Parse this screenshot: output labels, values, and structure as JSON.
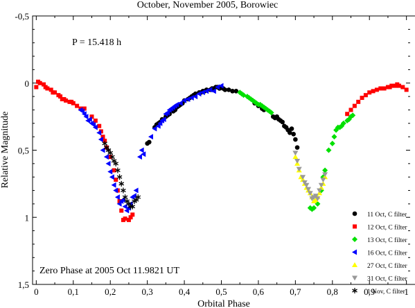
{
  "chart_data": {
    "type": "scatter",
    "title": "October, November  2005, Borowiec",
    "xlabel": "Orbital Phase",
    "ylabel": "Relative Magnitude",
    "xlim": [
      -0.01,
      1.01
    ],
    "ylim": [
      -0.5,
      1.5
    ],
    "y_inverted": true,
    "x_ticks": [
      "0",
      "0,1",
      "0,2",
      "0,3",
      "0,4",
      "0,5",
      "0,6",
      "0,7",
      "0,8",
      "0,9",
      "1"
    ],
    "y_ticks": [
      "-0,5",
      "0",
      "0,5",
      "1",
      "1,5"
    ],
    "annotations": [
      "P = 15.418 h",
      "Zero Phase at 2005 Oct 11.9821 UT"
    ],
    "legend_position": "bottom-right",
    "series": [
      {
        "name": "11 Oct, C filter",
        "marker": "circle",
        "color": "#000000",
        "points": [
          [
            0.3,
            0.45
          ],
          [
            0.305,
            0.44
          ],
          [
            0.32,
            0.33
          ],
          [
            0.325,
            0.31
          ],
          [
            0.33,
            0.3
          ],
          [
            0.335,
            0.29
          ],
          [
            0.34,
            0.27
          ],
          [
            0.35,
            0.25
          ],
          [
            0.355,
            0.24
          ],
          [
            0.36,
            0.23
          ],
          [
            0.37,
            0.21
          ],
          [
            0.375,
            0.2
          ],
          [
            0.38,
            0.18
          ],
          [
            0.385,
            0.17
          ],
          [
            0.39,
            0.16
          ],
          [
            0.395,
            0.15
          ],
          [
            0.4,
            0.13
          ],
          [
            0.41,
            0.12
          ],
          [
            0.415,
            0.11
          ],
          [
            0.42,
            0.1
          ],
          [
            0.425,
            0.09
          ],
          [
            0.43,
            0.08
          ],
          [
            0.44,
            0.07
          ],
          [
            0.445,
            0.07
          ],
          [
            0.45,
            0.06
          ],
          [
            0.455,
            0.06
          ],
          [
            0.46,
            0.05
          ],
          [
            0.47,
            0.05
          ],
          [
            0.475,
            0.04
          ],
          [
            0.48,
            0.04
          ],
          [
            0.485,
            0.03
          ],
          [
            0.49,
            0.03
          ],
          [
            0.495,
            0.04
          ],
          [
            0.5,
            0.03
          ],
          [
            0.505,
            0.04
          ],
          [
            0.51,
            0.05
          ],
          [
            0.52,
            0.05
          ],
          [
            0.53,
            0.06
          ],
          [
            0.54,
            0.06
          ],
          [
            0.59,
            0.15
          ],
          [
            0.6,
            0.17
          ],
          [
            0.61,
            0.19
          ],
          [
            0.615,
            0.2
          ],
          [
            0.64,
            0.25
          ],
          [
            0.645,
            0.26
          ],
          [
            0.65,
            0.25
          ],
          [
            0.655,
            0.27
          ],
          [
            0.66,
            0.28
          ],
          [
            0.665,
            0.29
          ],
          [
            0.67,
            0.32
          ],
          [
            0.675,
            0.33
          ],
          [
            0.68,
            0.35
          ],
          [
            0.685,
            0.37
          ],
          [
            0.69,
            0.34
          ],
          [
            0.695,
            0.38
          ],
          [
            0.7,
            0.42
          ],
          [
            0.705,
            0.48
          ]
        ]
      },
      {
        "name": "12 Oct, C filter",
        "marker": "square",
        "color": "#ff0000",
        "points": [
          [
            0.0,
            0.03
          ],
          [
            0.005,
            -0.01
          ],
          [
            0.01,
            0.0
          ],
          [
            0.02,
            0.01
          ],
          [
            0.025,
            0.03
          ],
          [
            0.03,
            0.04
          ],
          [
            0.04,
            0.05
          ],
          [
            0.045,
            0.07
          ],
          [
            0.05,
            0.07
          ],
          [
            0.06,
            0.09
          ],
          [
            0.065,
            0.1
          ],
          [
            0.07,
            0.12
          ],
          [
            0.075,
            0.12
          ],
          [
            0.08,
            0.13
          ],
          [
            0.09,
            0.14
          ],
          [
            0.095,
            0.14
          ],
          [
            0.1,
            0.15
          ],
          [
            0.11,
            0.17
          ],
          [
            0.12,
            0.19
          ],
          [
            0.13,
            0.19
          ],
          [
            0.15,
            0.25
          ],
          [
            0.16,
            0.28
          ],
          [
            0.17,
            0.32
          ],
          [
            0.175,
            0.36
          ],
          [
            0.18,
            0.4
          ],
          [
            0.185,
            0.43
          ],
          [
            0.19,
            0.48
          ],
          [
            0.2,
            0.55
          ],
          [
            0.21,
            0.65
          ],
          [
            0.215,
            0.72
          ],
          [
            0.22,
            0.8
          ],
          [
            0.225,
            0.88
          ],
          [
            0.23,
            0.95
          ],
          [
            0.235,
            1.02
          ],
          [
            0.24,
            1.01
          ],
          [
            0.25,
            1.02
          ],
          [
            0.255,
            1.0
          ],
          [
            0.26,
            0.98
          ],
          [
            0.84,
            0.23
          ],
          [
            0.85,
            0.2
          ],
          [
            0.86,
            0.17
          ],
          [
            0.87,
            0.14
          ],
          [
            0.88,
            0.11
          ],
          [
            0.89,
            0.09
          ],
          [
            0.9,
            0.07
          ],
          [
            0.91,
            0.06
          ],
          [
            0.92,
            0.05
          ],
          [
            0.93,
            0.04
          ],
          [
            0.94,
            0.04
          ],
          [
            0.95,
            0.03
          ],
          [
            0.955,
            0.03
          ],
          [
            0.96,
            0.02
          ],
          [
            0.97,
            0.02
          ],
          [
            0.975,
            0.01
          ],
          [
            0.98,
            0.02
          ],
          [
            0.99,
            0.03
          ],
          [
            1.0,
            0.05
          ]
        ]
      },
      {
        "name": "13 Oct, C filter",
        "marker": "diamond",
        "color": "#00e000",
        "points": [
          [
            0.55,
            0.07
          ],
          [
            0.555,
            0.08
          ],
          [
            0.56,
            0.09
          ],
          [
            0.57,
            0.1
          ],
          [
            0.575,
            0.11
          ],
          [
            0.58,
            0.12
          ],
          [
            0.585,
            0.13
          ],
          [
            0.59,
            0.14
          ],
          [
            0.595,
            0.15
          ],
          [
            0.6,
            0.16
          ],
          [
            0.605,
            0.16
          ],
          [
            0.61,
            0.17
          ],
          [
            0.615,
            0.18
          ],
          [
            0.62,
            0.19
          ],
          [
            0.625,
            0.2
          ],
          [
            0.63,
            0.21
          ],
          [
            0.635,
            0.22
          ],
          [
            0.74,
            0.93
          ],
          [
            0.745,
            0.94
          ],
          [
            0.75,
            0.93
          ],
          [
            0.76,
            0.9
          ],
          [
            0.77,
            0.8
          ],
          [
            0.775,
            0.7
          ],
          [
            0.78,
            0.65
          ],
          [
            0.79,
            0.5
          ],
          [
            0.8,
            0.45
          ],
          [
            0.805,
            0.4
          ],
          [
            0.81,
            0.35
          ],
          [
            0.815,
            0.33
          ],
          [
            0.82,
            0.33
          ],
          [
            0.825,
            0.32
          ],
          [
            0.83,
            0.3
          ],
          [
            0.84,
            0.28
          ],
          [
            0.845,
            0.27
          ],
          [
            0.85,
            0.25
          ],
          [
            0.855,
            0.24
          ]
        ]
      },
      {
        "name": "16 Oct, C filter",
        "marker": "triangle-left",
        "color": "#0000ff",
        "points": [
          [
            0.12,
            0.2
          ],
          [
            0.125,
            0.21
          ],
          [
            0.13,
            0.23
          ],
          [
            0.135,
            0.25
          ],
          [
            0.14,
            0.28
          ],
          [
            0.145,
            0.27
          ],
          [
            0.15,
            0.3
          ],
          [
            0.155,
            0.31
          ],
          [
            0.16,
            0.33
          ],
          [
            0.17,
            0.37
          ],
          [
            0.175,
            0.42
          ],
          [
            0.18,
            0.5
          ],
          [
            0.19,
            0.55
          ],
          [
            0.195,
            0.6
          ],
          [
            0.2,
            0.66
          ],
          [
            0.205,
            0.7
          ],
          [
            0.21,
            0.76
          ],
          [
            0.215,
            0.8
          ],
          [
            0.22,
            0.85
          ],
          [
            0.225,
            0.9
          ],
          [
            0.23,
            0.88
          ],
          [
            0.235,
            0.87
          ],
          [
            0.24,
            0.92
          ],
          [
            0.245,
            0.95
          ],
          [
            0.25,
            0.93
          ],
          [
            0.255,
            0.9
          ],
          [
            0.26,
            0.85
          ],
          [
            0.265,
            0.84
          ],
          [
            0.27,
            0.8
          ],
          [
            0.28,
            0.55
          ],
          [
            0.285,
            0.5
          ],
          [
            0.29,
            0.53
          ],
          [
            0.31,
            0.4
          ],
          [
            0.32,
            0.34
          ],
          [
            0.33,
            0.32
          ],
          [
            0.335,
            0.3
          ],
          [
            0.34,
            0.28
          ],
          [
            0.345,
            0.27
          ],
          [
            0.35,
            0.23
          ],
          [
            0.355,
            0.22
          ],
          [
            0.36,
            0.2
          ],
          [
            0.365,
            0.19
          ],
          [
            0.37,
            0.18
          ],
          [
            0.375,
            0.17
          ],
          [
            0.38,
            0.16
          ],
          [
            0.39,
            0.15
          ],
          [
            0.4,
            0.13
          ],
          [
            0.41,
            0.12
          ],
          [
            0.42,
            0.11
          ],
          [
            0.43,
            0.1
          ],
          [
            0.44,
            0.08
          ],
          [
            0.45,
            0.07
          ],
          [
            0.46,
            0.06
          ],
          [
            0.47,
            0.05
          ],
          [
            0.48,
            0.06
          ],
          [
            0.49,
            0.03
          ],
          [
            0.5,
            0.02
          ]
        ]
      },
      {
        "name": "27 Oct, C filter",
        "marker": "triangle-up",
        "color": "#ffff00",
        "points": [
          [
            0.7,
            0.55
          ],
          [
            0.705,
            0.6
          ],
          [
            0.71,
            0.65
          ],
          [
            0.715,
            0.7
          ],
          [
            0.72,
            0.72
          ],
          [
            0.725,
            0.75
          ],
          [
            0.73,
            0.78
          ],
          [
            0.735,
            0.8
          ],
          [
            0.74,
            0.82
          ],
          [
            0.745,
            0.85
          ],
          [
            0.75,
            0.88
          ],
          [
            0.755,
            0.87
          ],
          [
            0.76,
            0.85
          ],
          [
            0.765,
            0.82
          ],
          [
            0.77,
            0.78
          ],
          [
            0.775,
            0.75
          ],
          [
            0.78,
            0.7
          ]
        ]
      },
      {
        "name": "31 Oct, C filter",
        "marker": "triangle-down",
        "color": "#999999",
        "points": [
          [
            0.7,
            0.52
          ],
          [
            0.705,
            0.58
          ],
          [
            0.71,
            0.64
          ],
          [
            0.72,
            0.7
          ],
          [
            0.725,
            0.74
          ],
          [
            0.73,
            0.76
          ],
          [
            0.735,
            0.79
          ],
          [
            0.74,
            0.82
          ],
          [
            0.745,
            0.86
          ],
          [
            0.75,
            0.85
          ],
          [
            0.755,
            0.84
          ],
          [
            0.76,
            0.86
          ],
          [
            0.765,
            0.8
          ],
          [
            0.77,
            0.76
          ],
          [
            0.775,
            0.72
          ],
          [
            0.78,
            0.68
          ]
        ]
      },
      {
        "name": "1 Nov, C filter",
        "marker": "asterisk",
        "color": "#000000",
        "points": [
          [
            0.185,
            0.45
          ],
          [
            0.19,
            0.48
          ],
          [
            0.195,
            0.5
          ],
          [
            0.2,
            0.52
          ],
          [
            0.205,
            0.55
          ],
          [
            0.21,
            0.58
          ],
          [
            0.215,
            0.6
          ],
          [
            0.22,
            0.65
          ],
          [
            0.225,
            0.7
          ],
          [
            0.23,
            0.75
          ],
          [
            0.235,
            0.8
          ],
          [
            0.24,
            0.85
          ],
          [
            0.245,
            0.88
          ],
          [
            0.25,
            0.9
          ],
          [
            0.255,
            0.92
          ],
          [
            0.26,
            0.92
          ],
          [
            0.265,
            0.88
          ],
          [
            0.27,
            0.87
          ],
          [
            0.275,
            0.85
          ]
        ]
      }
    ]
  }
}
